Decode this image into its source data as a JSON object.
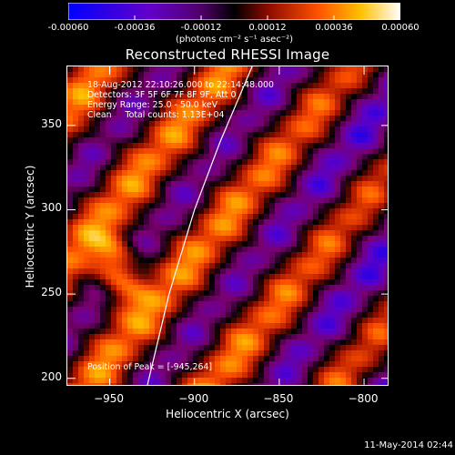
{
  "colorbar": {
    "ticks": [
      "-0.00060",
      "-0.00036",
      "-0.00012",
      "0.00012",
      "0.00036",
      "0.00060"
    ],
    "label": "(photons cm⁻² s⁻¹ asec⁻²)",
    "min": -0.0006,
    "max": 0.0006,
    "colors": [
      "#0000ff",
      "#5a00c8",
      "#7a0070",
      "#000000",
      "#a01000",
      "#ff5000",
      "#ffc000",
      "#ffffff"
    ]
  },
  "chart_data": {
    "type": "heatmap",
    "title": "Reconstructed RHESSI Image",
    "xlabel": "Heliocentric X (arcsec)",
    "ylabel": "Heliocentric Y (arcsec)",
    "xlim": [
      -975,
      -785
    ],
    "ylim": [
      195,
      385
    ],
    "xticks": [
      -950,
      -900,
      -850,
      -800
    ],
    "yticks": [
      200,
      250,
      300,
      350
    ],
    "xtick_labels": [
      "−950",
      "−900",
      "−850",
      "−800"
    ],
    "ytick_labels": [
      "200",
      "250",
      "300",
      "350"
    ],
    "info": [
      "18-Aug-2012 22:10:26.000 to 22:14:48.000",
      "Detectors: 3F 5F 6F 7F 8F 9F, Att 0",
      "Energy Range: 25.0 - 50.0 keV",
      "Clean     Total counts: 1.13E+04"
    ],
    "peak_text": "Position of Peak = [-945,264]",
    "peak": [
      -945,
      264
    ],
    "limb_curve": [
      [
        -928,
        195
      ],
      [
        -915,
        250
      ],
      [
        -900,
        300
      ],
      [
        -885,
        340
      ],
      [
        -866,
        385
      ]
    ]
  },
  "footer": "11-May-2014 02:44"
}
